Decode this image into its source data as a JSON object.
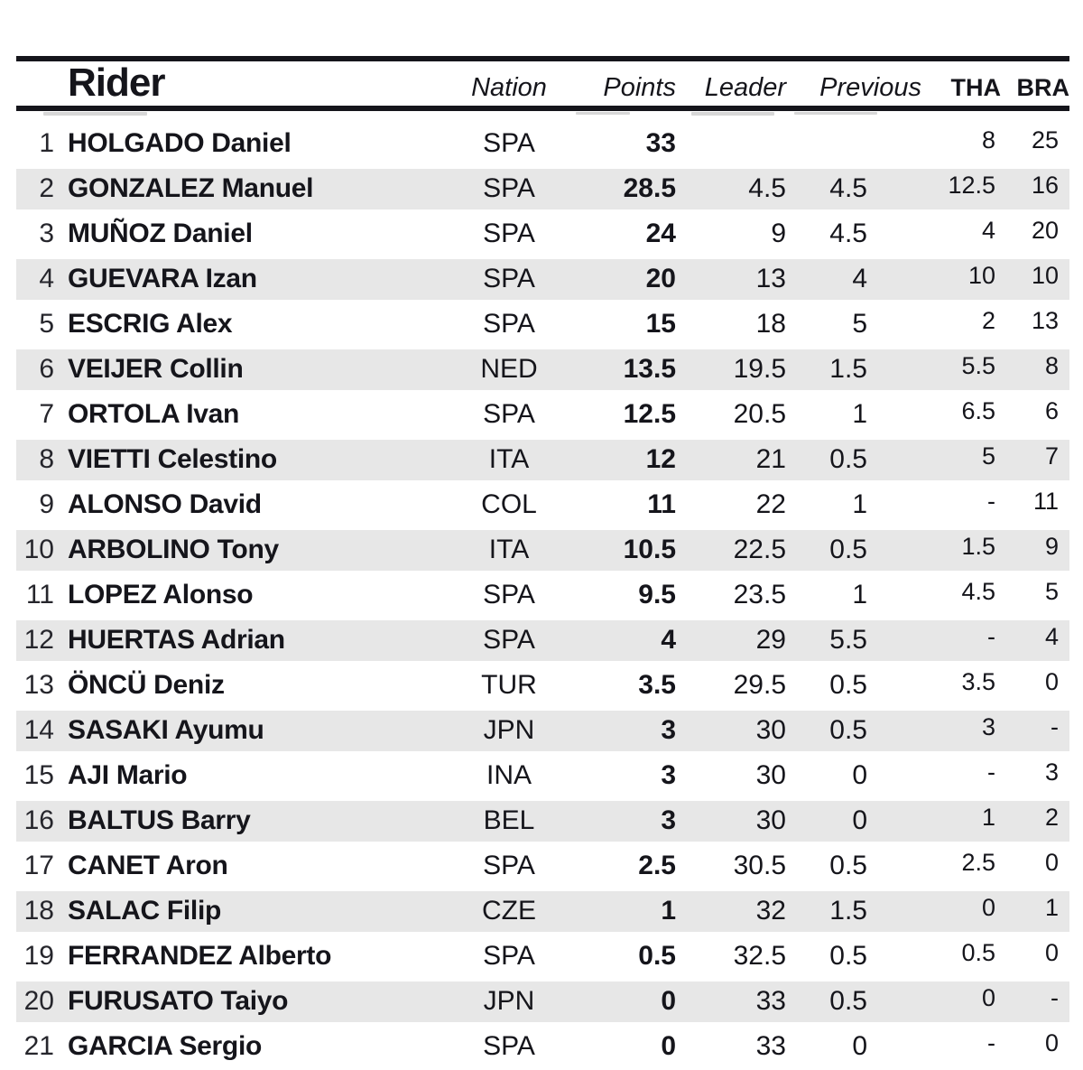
{
  "title": "Rider standings table",
  "colors": {
    "background": "#ffffff",
    "rule": "#15151b",
    "text": "#15151b",
    "alt_row": "#e7e7e7"
  },
  "header": {
    "rider": "Rider",
    "nation": "Nation",
    "points": "Points",
    "leader": "Leader",
    "previous": "Previous",
    "tha": "THA",
    "bra": "BRA"
  },
  "rows": [
    {
      "pos": "1",
      "rider": "HOLGADO Daniel",
      "nation": "SPA",
      "points": "33",
      "leader": "",
      "previous": "",
      "tha": "8",
      "bra": "25"
    },
    {
      "pos": "2",
      "rider": "GONZALEZ Manuel",
      "nation": "SPA",
      "points": "28.5",
      "leader": "4.5",
      "previous": "4.5",
      "tha": "12.5",
      "bra": "16"
    },
    {
      "pos": "3",
      "rider": "MUÑOZ Daniel",
      "nation": "SPA",
      "points": "24",
      "leader": "9",
      "previous": "4.5",
      "tha": "4",
      "bra": "20"
    },
    {
      "pos": "4",
      "rider": "GUEVARA Izan",
      "nation": "SPA",
      "points": "20",
      "leader": "13",
      "previous": "4",
      "tha": "10",
      "bra": "10"
    },
    {
      "pos": "5",
      "rider": "ESCRIG Alex",
      "nation": "SPA",
      "points": "15",
      "leader": "18",
      "previous": "5",
      "tha": "2",
      "bra": "13"
    },
    {
      "pos": "6",
      "rider": "VEIJER Collin",
      "nation": "NED",
      "points": "13.5",
      "leader": "19.5",
      "previous": "1.5",
      "tha": "5.5",
      "bra": "8"
    },
    {
      "pos": "7",
      "rider": "ORTOLA Ivan",
      "nation": "SPA",
      "points": "12.5",
      "leader": "20.5",
      "previous": "1",
      "tha": "6.5",
      "bra": "6"
    },
    {
      "pos": "8",
      "rider": "VIETTI Celestino",
      "nation": "ITA",
      "points": "12",
      "leader": "21",
      "previous": "0.5",
      "tha": "5",
      "bra": "7"
    },
    {
      "pos": "9",
      "rider": "ALONSO David",
      "nation": "COL",
      "points": "11",
      "leader": "22",
      "previous": "1",
      "tha": "-",
      "bra": "11"
    },
    {
      "pos": "10",
      "rider": "ARBOLINO Tony",
      "nation": "ITA",
      "points": "10.5",
      "leader": "22.5",
      "previous": "0.5",
      "tha": "1.5",
      "bra": "9"
    },
    {
      "pos": "11",
      "rider": "LOPEZ Alonso",
      "nation": "SPA",
      "points": "9.5",
      "leader": "23.5",
      "previous": "1",
      "tha": "4.5",
      "bra": "5"
    },
    {
      "pos": "12",
      "rider": "HUERTAS Adrian",
      "nation": "SPA",
      "points": "4",
      "leader": "29",
      "previous": "5.5",
      "tha": "-",
      "bra": "4"
    },
    {
      "pos": "13",
      "rider": "ÖNCÜ Deniz",
      "nation": "TUR",
      "points": "3.5",
      "leader": "29.5",
      "previous": "0.5",
      "tha": "3.5",
      "bra": "0"
    },
    {
      "pos": "14",
      "rider": "SASAKI Ayumu",
      "nation": "JPN",
      "points": "3",
      "leader": "30",
      "previous": "0.5",
      "tha": "3",
      "bra": "-"
    },
    {
      "pos": "15",
      "rider": "AJI Mario",
      "nation": "INA",
      "points": "3",
      "leader": "30",
      "previous": "0",
      "tha": "-",
      "bra": "3"
    },
    {
      "pos": "16",
      "rider": "BALTUS Barry",
      "nation": "BEL",
      "points": "3",
      "leader": "30",
      "previous": "0",
      "tha": "1",
      "bra": "2"
    },
    {
      "pos": "17",
      "rider": "CANET Aron",
      "nation": "SPA",
      "points": "2.5",
      "leader": "30.5",
      "previous": "0.5",
      "tha": "2.5",
      "bra": "0"
    },
    {
      "pos": "18",
      "rider": "SALAC Filip",
      "nation": "CZE",
      "points": "1",
      "leader": "32",
      "previous": "1.5",
      "tha": "0",
      "bra": "1"
    },
    {
      "pos": "19",
      "rider": "FERRANDEZ Alberto",
      "nation": "SPA",
      "points": "0.5",
      "leader": "32.5",
      "previous": "0.5",
      "tha": "0.5",
      "bra": "0"
    },
    {
      "pos": "20",
      "rider": "FURUSATO Taiyo",
      "nation": "JPN",
      "points": "0",
      "leader": "33",
      "previous": "0.5",
      "tha": "0",
      "bra": "-"
    },
    {
      "pos": "21",
      "rider": "GARCIA Sergio",
      "nation": "SPA",
      "points": "0",
      "leader": "33",
      "previous": "0",
      "tha": "-",
      "bra": "0"
    }
  ]
}
